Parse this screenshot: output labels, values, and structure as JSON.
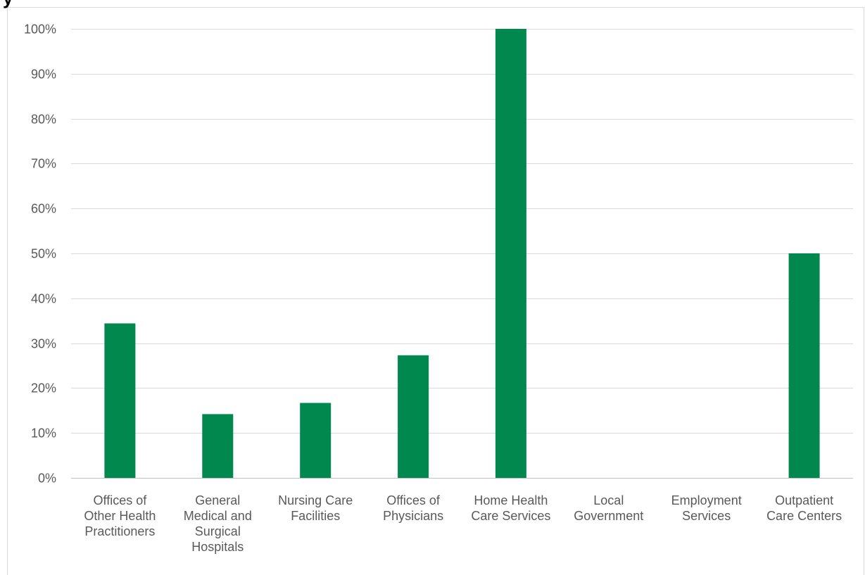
{
  "chart_data": {
    "type": "bar",
    "title_fragment": "y",
    "categories": [
      "Offices of Other Health Practitioners",
      "General Medical and Surgical Hospitals",
      "Nursing Care Facilities",
      "Offices of Physicians",
      "Home Health Care Services",
      "Local Government",
      "Employment Services",
      "Outpatient Care Centers"
    ],
    "category_label_lines": [
      [
        "Offices of",
        "Other Health",
        "Practitioners"
      ],
      [
        "General",
        "Medical and",
        "Surgical",
        "Hospitals"
      ],
      [
        "Nursing Care",
        "Facilities"
      ],
      [
        "Offices of",
        "Physicians"
      ],
      [
        "Home Health",
        "Care Services"
      ],
      [
        "Local",
        "Government"
      ],
      [
        "Employment",
        "Services"
      ],
      [
        "Outpatient",
        "Care Centers"
      ]
    ],
    "values": [
      34.4,
      14.2,
      16.7,
      27.3,
      100,
      0,
      0,
      50
    ],
    "ylim": [
      0,
      100
    ],
    "yticks": [
      0,
      10,
      20,
      30,
      40,
      50,
      60,
      70,
      80,
      90,
      100
    ],
    "ytick_labels": [
      "0%",
      "10%",
      "20%",
      "30%",
      "40%",
      "50%",
      "60%",
      "70%",
      "80%",
      "90%",
      "100%"
    ],
    "xlabel": "",
    "ylabel": "",
    "grid": true,
    "bar_color": "#00884F",
    "grid_color": "#D9D9D9",
    "axis_color": "#BFBFBF",
    "label_color": "#595959"
  }
}
